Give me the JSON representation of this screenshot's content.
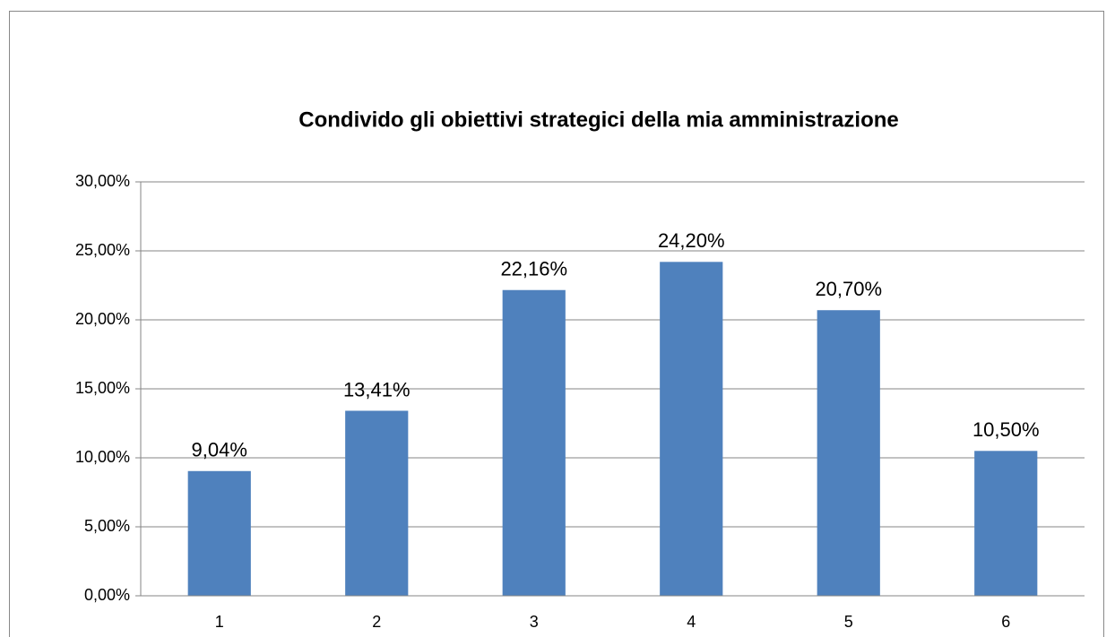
{
  "chart_data": {
    "type": "bar",
    "title": "Condivido gli obiettivi strategici della mia amministrazione",
    "categories": [
      "1",
      "2",
      "3",
      "4",
      "5",
      "6"
    ],
    "values": [
      9.04,
      13.41,
      22.16,
      24.2,
      20.7,
      10.5
    ],
    "value_labels": [
      "9,04%",
      "13,41%",
      "22,16%",
      "24,20%",
      "20,70%",
      "10,50%"
    ],
    "color": "#4f81bd",
    "ylim": [
      0,
      30
    ],
    "yticks": [
      {
        "value": 0,
        "label": "0,00%"
      },
      {
        "value": 5,
        "label": "5,00%"
      },
      {
        "value": 10,
        "label": "10,00%"
      },
      {
        "value": 15,
        "label": "15,00%"
      },
      {
        "value": 20,
        "label": "20,00%"
      },
      {
        "value": 25,
        "label": "25,00%"
      },
      {
        "value": 30,
        "label": "30,00%"
      }
    ],
    "grid": true
  }
}
